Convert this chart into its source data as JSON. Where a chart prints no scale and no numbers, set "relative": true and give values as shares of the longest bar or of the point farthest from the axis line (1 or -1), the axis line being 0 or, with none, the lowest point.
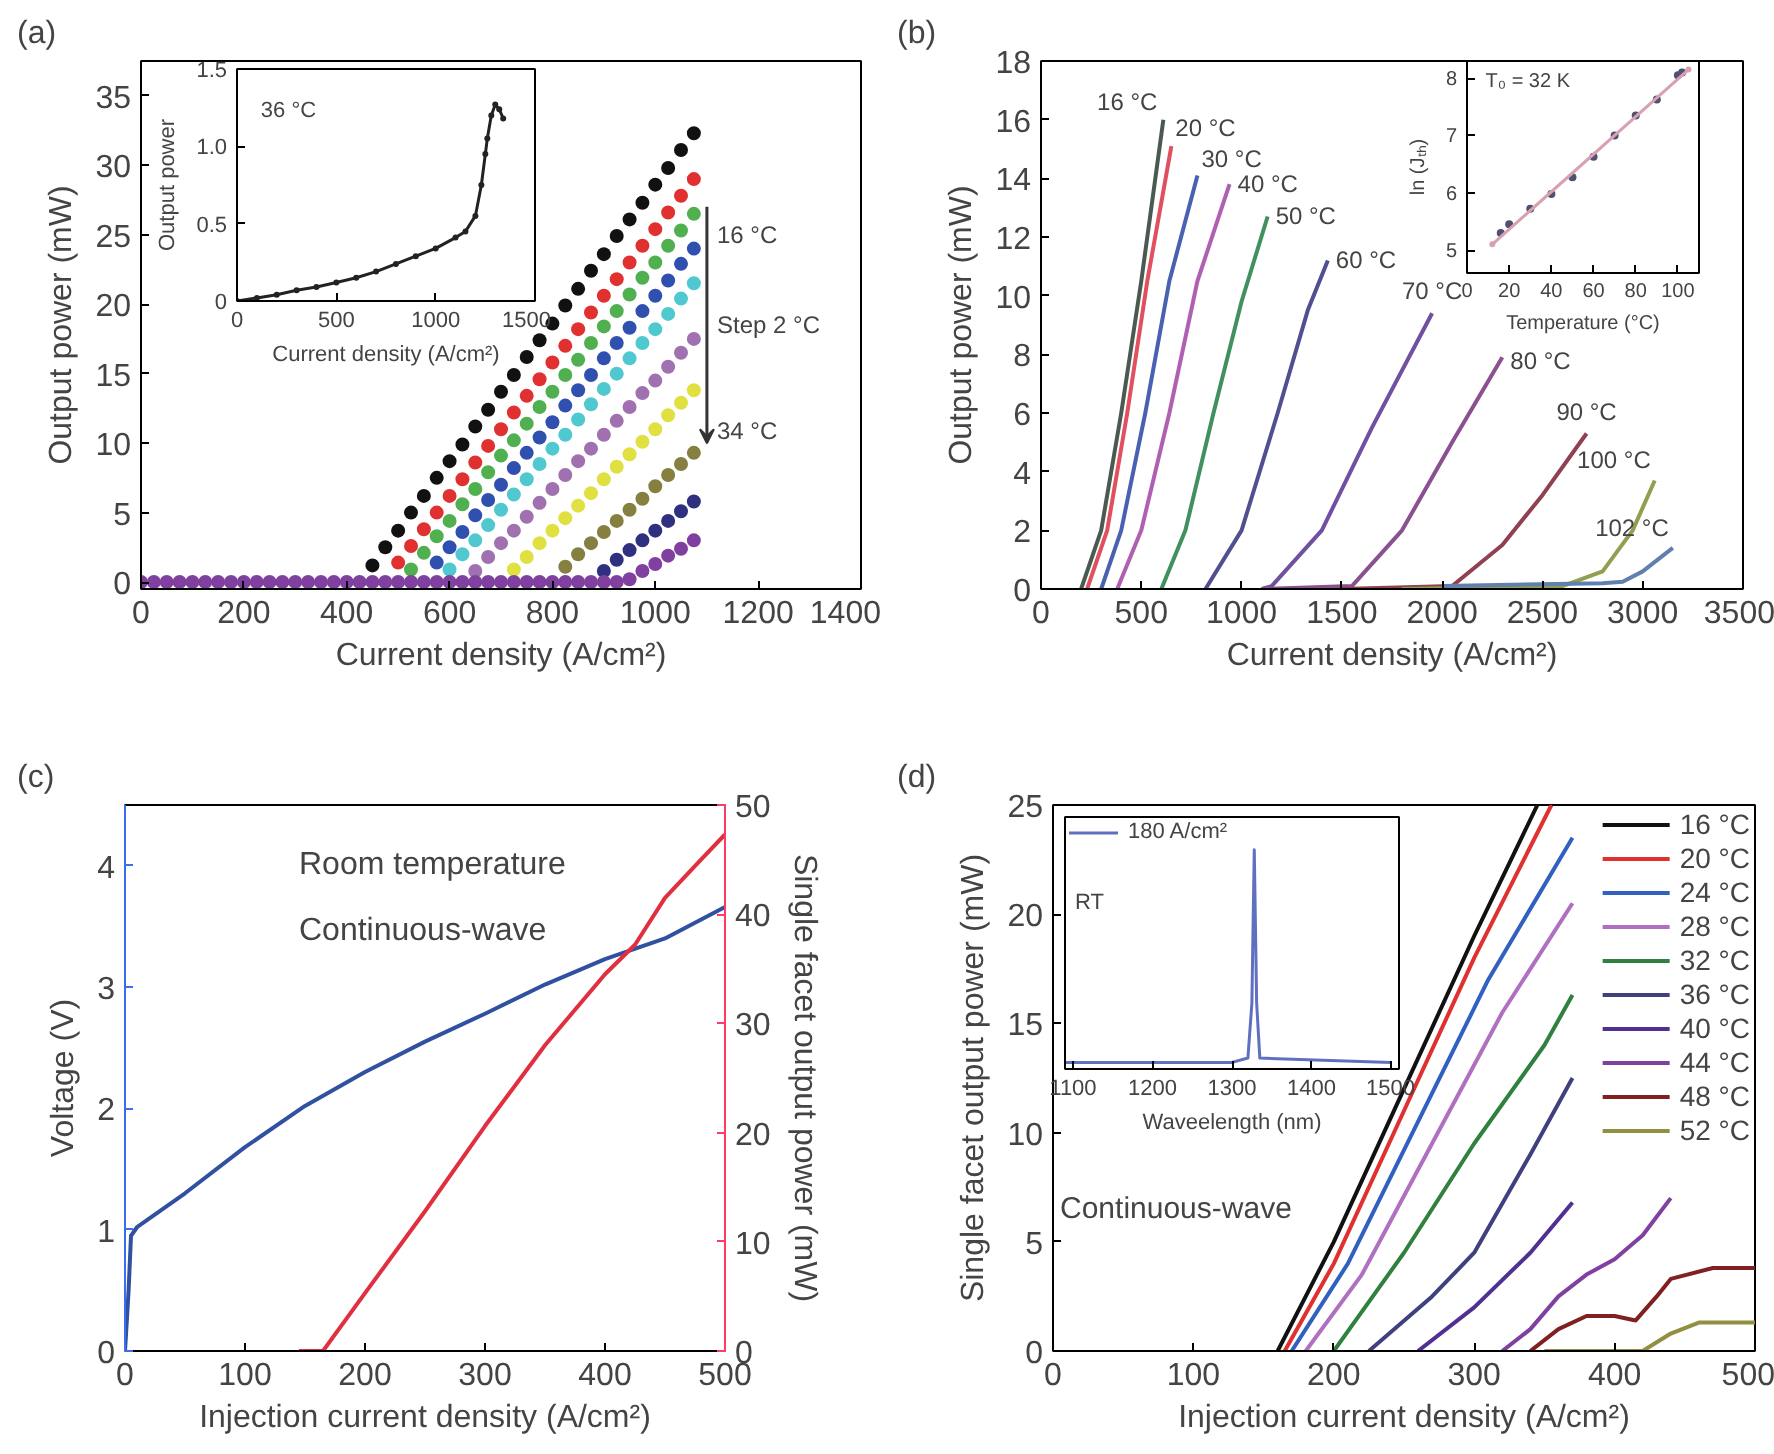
{
  "chart_data": [
    {
      "type": "scatter",
      "title": "(a)",
      "xlabel": "Current density (A/cm²)",
      "ylabel": "Output power (mW)",
      "xlim": [
        0,
        1400
      ],
      "ylim": [
        -0.5,
        37.5
      ],
      "xticks": [
        0,
        200,
        400,
        600,
        800,
        1000,
        1200,
        1400
      ],
      "yticks": [
        0,
        5,
        10,
        15,
        20,
        25,
        30,
        35
      ],
      "marker": "circle",
      "annotations": [
        "16 °C",
        "Step 2 °C",
        "34 °C"
      ],
      "x": [
        0,
        25,
        50,
        75,
        100,
        125,
        150,
        175,
        200,
        225,
        250,
        275,
        300,
        325,
        350,
        375,
        400,
        425,
        450,
        475,
        500,
        525,
        550,
        575,
        600,
        625,
        650,
        675,
        700,
        725,
        750,
        775,
        800,
        825,
        850,
        875,
        900,
        925,
        950,
        975,
        1000,
        1025,
        1050,
        1075
      ],
      "series": [
        {
          "color": "#111111",
          "values": [
            null,
            null,
            null,
            null,
            null,
            null,
            null,
            null,
            null,
            null,
            null,
            null,
            null,
            null,
            null,
            null,
            null,
            null,
            1.2,
            2.5,
            3.7,
            5.0,
            6.2,
            7.5,
            8.7,
            9.9,
            11.2,
            12.4,
            13.7,
            14.9,
            16.2,
            17.4,
            18.6,
            19.9,
            21.1,
            22.4,
            23.6,
            24.9,
            26.1,
            27.3,
            28.6,
            29.8,
            31.1,
            32.3
          ]
        },
        {
          "color": "#e03030",
          "values": [
            null,
            null,
            null,
            null,
            null,
            null,
            null,
            null,
            null,
            null,
            null,
            null,
            null,
            null,
            null,
            null,
            null,
            null,
            null,
            null,
            1.4,
            2.6,
            3.8,
            5.0,
            6.2,
            7.4,
            8.6,
            9.8,
            11.0,
            12.2,
            13.4,
            14.6,
            15.8,
            17.0,
            18.2,
            19.4,
            20.6,
            21.8,
            23.0,
            24.2,
            25.4,
            26.6,
            27.8,
            29.0
          ]
        },
        {
          "color": "#50b050",
          "values": [
            null,
            null,
            null,
            null,
            null,
            null,
            null,
            null,
            null,
            null,
            null,
            null,
            null,
            null,
            null,
            null,
            null,
            null,
            null,
            null,
            null,
            0.9,
            2.1,
            3.3,
            4.4,
            5.6,
            6.7,
            7.9,
            9.1,
            10.2,
            11.4,
            12.6,
            13.7,
            14.9,
            16.0,
            17.2,
            18.4,
            19.5,
            20.7,
            21.9,
            23.0,
            24.2,
            25.3,
            26.5
          ]
        },
        {
          "color": "#3050b0",
          "values": [
            null,
            null,
            null,
            null,
            null,
            null,
            null,
            null,
            null,
            null,
            null,
            null,
            null,
            null,
            null,
            null,
            null,
            null,
            null,
            null,
            null,
            null,
            null,
            1.4,
            2.5,
            3.6,
            4.8,
            5.9,
            7.0,
            8.2,
            9.3,
            10.4,
            11.5,
            12.7,
            13.8,
            14.9,
            16.1,
            17.2,
            18.3,
            19.5,
            20.6,
            21.7,
            22.9,
            24.0
          ]
        },
        {
          "color": "#50c8d0",
          "values": [
            null,
            null,
            null,
            null,
            null,
            null,
            null,
            null,
            null,
            null,
            null,
            null,
            null,
            null,
            null,
            null,
            null,
            null,
            null,
            null,
            null,
            null,
            null,
            null,
            0.9,
            2.0,
            3.0,
            4.1,
            5.2,
            6.3,
            7.4,
            8.5,
            9.6,
            10.6,
            11.7,
            12.8,
            13.9,
            15.0,
            16.1,
            17.2,
            18.2,
            19.3,
            20.4,
            21.5
          ]
        },
        {
          "color": "#a070b0",
          "values": [
            null,
            null,
            null,
            null,
            null,
            null,
            null,
            null,
            null,
            null,
            null,
            null,
            null,
            null,
            null,
            null,
            null,
            null,
            null,
            null,
            null,
            null,
            null,
            null,
            null,
            null,
            0.8,
            1.8,
            2.8,
            3.7,
            4.7,
            5.7,
            6.7,
            7.7,
            8.7,
            9.6,
            10.6,
            11.6,
            12.6,
            13.6,
            14.5,
            15.5,
            16.5,
            17.5
          ]
        },
        {
          "color": "#e0e040",
          "values": [
            null,
            null,
            null,
            null,
            null,
            null,
            null,
            null,
            null,
            null,
            null,
            null,
            null,
            null,
            null,
            null,
            null,
            null,
            null,
            null,
            null,
            null,
            null,
            null,
            null,
            null,
            null,
            null,
            null,
            0.9,
            1.8,
            2.8,
            3.7,
            4.6,
            5.5,
            6.4,
            7.4,
            8.3,
            9.2,
            10.1,
            11.0,
            12.0,
            12.9,
            13.8
          ]
        },
        {
          "color": "#858040",
          "values": [
            null,
            null,
            null,
            null,
            null,
            null,
            null,
            null,
            null,
            null,
            null,
            null,
            null,
            null,
            null,
            null,
            null,
            null,
            null,
            null,
            null,
            null,
            null,
            null,
            null,
            null,
            null,
            null,
            null,
            null,
            null,
            null,
            null,
            1.1,
            2.0,
            2.8,
            3.6,
            4.4,
            5.2,
            6.0,
            6.9,
            7.7,
            8.5,
            9.3
          ]
        },
        {
          "color": "#303080",
          "values": [
            null,
            null,
            null,
            null,
            null,
            null,
            null,
            null,
            null,
            null,
            null,
            null,
            null,
            null,
            null,
            null,
            null,
            null,
            null,
            null,
            null,
            null,
            null,
            null,
            null,
            null,
            null,
            null,
            null,
            null,
            null,
            null,
            null,
            null,
            null,
            null,
            0.8,
            1.6,
            2.3,
            3.0,
            3.7,
            4.4,
            5.1,
            5.8
          ]
        },
        {
          "color": "#8040a0",
          "values": [
            0,
            0,
            0,
            0,
            0,
            0,
            0,
            0,
            0,
            0,
            0,
            0,
            0,
            0,
            0,
            0,
            0,
            0,
            0,
            0,
            0,
            0,
            0,
            0,
            0,
            0,
            0,
            0,
            0,
            0,
            0,
            0,
            0,
            0,
            0,
            0,
            0,
            0,
            0.2,
            0.8,
            1.3,
            1.9,
            2.4,
            3.0
          ]
        }
      ]
    },
    {
      "type": "line",
      "xlabel": "Current density (A/cm²)",
      "ylabel": "Output power",
      "xlim": [
        0,
        1500
      ],
      "ylim": [
        0,
        1.5
      ],
      "xticks": [
        0,
        500,
        1000,
        1500
      ],
      "yticks": [
        0,
        {
          "value": 0.5,
          "label": "0.5"
        },
        {
          "value": 1,
          "label": "1.0"
        },
        {
          "value": 1.5,
          "label": "1.5"
        }
      ],
      "marker": "circle",
      "annotations": [
        "36 °C"
      ],
      "series": [
        {
          "color": "#222222",
          "x": [
            0,
            100,
            200,
            300,
            400,
            500,
            600,
            700,
            800,
            900,
            1000,
            1100,
            1150,
            1200,
            1230,
            1250,
            1260,
            1280,
            1300,
            1320,
            1340
          ],
          "values": [
            0,
            0.02,
            0.04,
            0.07,
            0.09,
            0.12,
            0.15,
            0.19,
            0.24,
            0.29,
            0.34,
            0.41,
            0.45,
            0.55,
            0.75,
            0.95,
            1.05,
            1.2,
            1.27,
            1.24,
            1.18
          ]
        }
      ]
    },
    {
      "type": "line",
      "title": "(b)",
      "xlabel": "Current density (A/cm²)",
      "ylabel": "Output power (mW)",
      "xlim": [
        0,
        3500
      ],
      "ylim": [
        0,
        18
      ],
      "xticks": [
        0,
        500,
        1000,
        1500,
        2000,
        2500,
        3000,
        3500
      ],
      "yticks": [
        0,
        2,
        4,
        6,
        8,
        10,
        12,
        14,
        16,
        18
      ],
      "series": [
        {
          "name": "16 °C",
          "color": "#4a5a50",
          "x": [
            200,
            300,
            400,
            500,
            610
          ],
          "values": [
            0,
            2,
            6,
            10.5,
            16
          ]
        },
        {
          "name": "20 °C",
          "color": "#e05060",
          "x": [
            230,
            330,
            430,
            530,
            650
          ],
          "values": [
            0,
            2,
            6,
            10.5,
            15.1
          ]
        },
        {
          "name": "30 °C",
          "color": "#4a60b0",
          "x": [
            300,
            400,
            520,
            640,
            780
          ],
          "values": [
            0,
            2,
            6,
            10.5,
            14.1
          ]
        },
        {
          "name": "40 °C",
          "color": "#b060b0",
          "x": [
            380,
            500,
            640,
            780,
            940
          ],
          "values": [
            0,
            2,
            6,
            10.5,
            13.8
          ]
        },
        {
          "name": "50 °C",
          "color": "#409060",
          "x": [
            600,
            720,
            860,
            1000,
            1130
          ],
          "values": [
            0,
            2,
            6,
            9.8,
            12.7
          ]
        },
        {
          "name": "60 °C",
          "color": "#505090",
          "x": [
            820,
            1000,
            1180,
            1330,
            1430
          ],
          "values": [
            0,
            2,
            6,
            9.5,
            11.2
          ]
        },
        {
          "name": "70 °C",
          "color": "#7050a0",
          "x": [
            1100,
            1150,
            1400,
            1650,
            1950
          ],
          "values": [
            0,
            0.1,
            2,
            5.5,
            9.4
          ]
        },
        {
          "name": "80 °C",
          "color": "#8a5090",
          "x": [
            1100,
            1550,
            1800,
            2050,
            2300
          ],
          "values": [
            0,
            0.1,
            2,
            5,
            7.9
          ]
        },
        {
          "name": "90 °C",
          "color": "#904050",
          "x": [
            1500,
            2050,
            2300,
            2500,
            2720
          ],
          "values": [
            0,
            0.1,
            1.5,
            3.2,
            5.3
          ]
        },
        {
          "name": "100 °C",
          "color": "#90a050",
          "x": [
            1800,
            2600,
            2800,
            2950,
            3060
          ],
          "values": [
            0,
            0.1,
            0.6,
            2,
            3.7
          ]
        },
        {
          "name": "102 °C",
          "color": "#6080b0",
          "x": [
            2000,
            2800,
            2900,
            3000,
            3150
          ],
          "values": [
            0.1,
            0.2,
            0.25,
            0.6,
            1.4
          ]
        }
      ]
    },
    {
      "type": "scatter",
      "xlabel": "Temperature (°C)",
      "ylabel": "ln (Jₜₕ)",
      "xlim": [
        0,
        110
      ],
      "ylim": [
        4.6,
        8.3
      ],
      "xticks": [
        0,
        20,
        40,
        60,
        80,
        100
      ],
      "yticks": [
        5,
        6,
        7,
        8
      ],
      "marker": "circle",
      "annotations": [
        "T₀ = 32 K"
      ],
      "series": [
        {
          "color": "#505070",
          "x": [
            16,
            20,
            30,
            40,
            50,
            60,
            70,
            80,
            90,
            100,
            102
          ],
          "values": [
            5.3,
            5.45,
            5.72,
            5.98,
            6.27,
            6.63,
            7.0,
            7.35,
            7.63,
            8.05,
            8.1
          ]
        },
        {
          "type": "line",
          "color": "#d8a0b0",
          "x": [
            12,
            105
          ],
          "values": [
            5.1,
            8.15
          ]
        }
      ]
    },
    {
      "type": "line",
      "title": "(c)",
      "xlabel": "Injection current density (A/cm²)",
      "ylabel": "Voltage (V)",
      "y2label": "Single facet output power (mW)",
      "xlim": [
        0,
        500
      ],
      "ylim": [
        0,
        4.5
      ],
      "xticks": [
        0,
        100,
        200,
        300,
        400,
        500
      ],
      "yticks": [
        0,
        1,
        2,
        3,
        4
      ],
      "y2lim": [
        0,
        50
      ],
      "y2ticks": [
        0,
        10,
        20,
        30,
        40,
        50
      ],
      "annotations": [
        "Room temperature",
        "Continuous-wave"
      ],
      "series": [
        {
          "color": "#3050a0",
          "x": [
            0,
            3,
            5,
            10,
            50,
            100,
            150,
            200,
            250,
            300,
            350,
            400,
            450,
            500
          ],
          "values": [
            0,
            0.5,
            0.95,
            1.02,
            1.3,
            1.68,
            2.02,
            2.3,
            2.55,
            2.78,
            3.02,
            3.23,
            3.4,
            3.66
          ]
        },
        {
          "color": "#e03040",
          "axis": "y2",
          "x": [
            145,
            165,
            200,
            250,
            300,
            350,
            400,
            425,
            450,
            480,
            500
          ],
          "values": [
            0,
            0,
            5.3,
            12.8,
            20.6,
            28,
            34.5,
            37.2,
            41.5,
            45,
            47.3
          ]
        }
      ]
    },
    {
      "type": "line",
      "title": "(d)",
      "xlabel": "Injection current density (A/cm²)",
      "ylabel": "Single facet output power (mW)",
      "xlim": [
        0,
        500
      ],
      "ylim": [
        0,
        25
      ],
      "xticks": [
        0,
        100,
        200,
        300,
        400,
        500
      ],
      "yticks": [
        0,
        5,
        10,
        15,
        20,
        25
      ],
      "legend": "top right",
      "annotations": [
        "Continuous-wave"
      ],
      "series": [
        {
          "name": "16 °C",
          "color": "#111111",
          "x": [
            160,
            200,
            250,
            300,
            345
          ],
          "values": [
            0,
            5,
            12,
            19,
            25
          ]
        },
        {
          "name": "20 °C",
          "color": "#e03030",
          "x": [
            165,
            200,
            250,
            300,
            355
          ],
          "values": [
            0,
            4,
            11,
            18,
            25
          ]
        },
        {
          "name": "24 °C",
          "color": "#3060c0",
          "x": [
            170,
            210,
            260,
            310,
            370
          ],
          "values": [
            0,
            4,
            10.5,
            17,
            23.5
          ]
        },
        {
          "name": "28 °C",
          "color": "#b070c0",
          "x": [
            180,
            220,
            270,
            320,
            370
          ],
          "values": [
            0,
            3.5,
            9.5,
            15.5,
            20.5
          ]
        },
        {
          "name": "32 °C",
          "color": "#308040",
          "x": [
            200,
            250,
            300,
            350,
            370
          ],
          "values": [
            0,
            4.5,
            9.5,
            14,
            16.3
          ]
        },
        {
          "name": "36 °C",
          "color": "#404080",
          "x": [
            225,
            270,
            300,
            340,
            370
          ],
          "values": [
            0,
            2.5,
            4.5,
            9,
            12.5
          ]
        },
        {
          "name": "40 °C",
          "color": "#503090",
          "x": [
            260,
            300,
            340,
            370
          ],
          "values": [
            0,
            2,
            4.5,
            6.8
          ]
        },
        {
          "name": "44 °C",
          "color": "#8040a0",
          "x": [
            320,
            340,
            360,
            380,
            400,
            420,
            440
          ],
          "values": [
            0,
            1,
            2.5,
            3.5,
            4.2,
            5.3,
            7
          ]
        },
        {
          "name": "48 °C",
          "color": "#802020",
          "x": [
            340,
            360,
            380,
            400,
            415,
            430,
            440,
            470,
            500
          ],
          "values": [
            0,
            1,
            1.6,
            1.6,
            1.4,
            2.5,
            3.3,
            3.8,
            3.8
          ]
        },
        {
          "name": "52 °C",
          "color": "#909040",
          "x": [
            350,
            420,
            440,
            460,
            500
          ],
          "values": [
            0,
            0,
            0.8,
            1.3,
            1.3
          ]
        }
      ]
    },
    {
      "type": "line",
      "xlabel": "Waveelength (nm)",
      "xlim": [
        1090,
        1510
      ],
      "xticks": [
        1100,
        1200,
        1300,
        1400,
        1500
      ],
      "relative": true,
      "tick_labels": "x",
      "legend": "top left",
      "annotations": [
        "RT"
      ],
      "series": [
        {
          "name": "180 A/cm²",
          "color": "#6070c0",
          "x": [
            1090,
            1300,
            1320,
            1325,
            1328,
            1331,
            1335,
            1500
          ],
          "values": [
            0.03,
            0.03,
            0.05,
            0.3,
            1,
            0.3,
            0.05,
            0.03
          ]
        }
      ]
    }
  ]
}
